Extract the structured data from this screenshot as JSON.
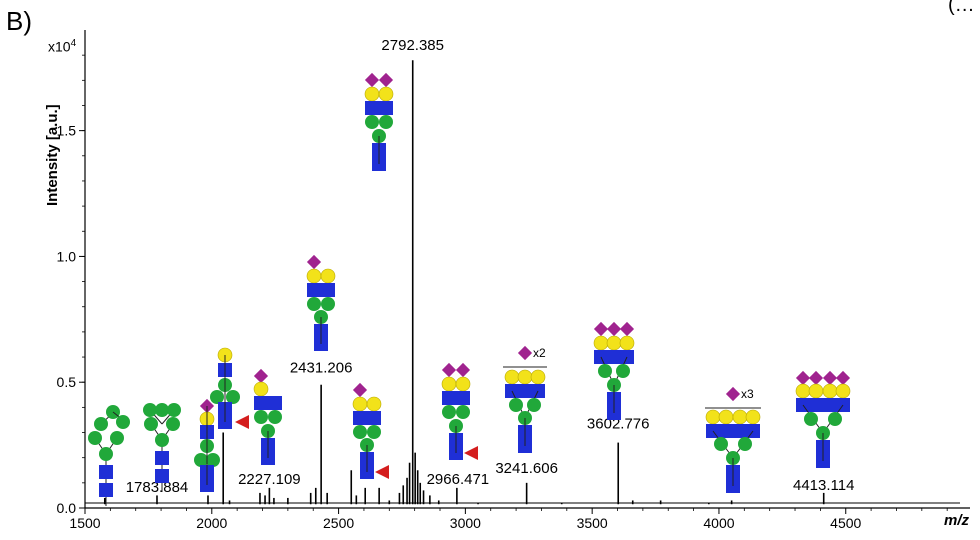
{
  "panel_label": "B)",
  "corner_fragment": "(…",
  "chart_data": {
    "type": "line",
    "title": "",
    "ylabel": "Intensity [a.u.]",
    "xlabel": "m/z",
    "y_scale_prefix": "x10",
    "y_scale_exponent": "4",
    "xlim": [
      1500,
      4990
    ],
    "ylim": [
      0,
      1.9
    ],
    "x_ticks": [
      1500,
      2000,
      2500,
      3000,
      3500,
      4000,
      4500
    ],
    "y_ticks": [
      0.0,
      0.5,
      1.0,
      1.5
    ],
    "y_tick_labels": [
      "0.0",
      "0.5",
      "1.0",
      "1.5"
    ],
    "grid": false,
    "peaks": [
      {
        "mz": 1578,
        "intensity": 0.04
      },
      {
        "mz": 1783.884,
        "intensity": 0.05,
        "label": "1783.884"
      },
      {
        "mz": 1985,
        "intensity": 0.05
      },
      {
        "mz": 2045,
        "intensity": 0.3
      },
      {
        "mz": 2070,
        "intensity": 0.03
      },
      {
        "mz": 2190,
        "intensity": 0.06
      },
      {
        "mz": 2210,
        "intensity": 0.05
      },
      {
        "mz": 2227.109,
        "intensity": 0.08,
        "label": "2227.109"
      },
      {
        "mz": 2245,
        "intensity": 0.04
      },
      {
        "mz": 2300,
        "intensity": 0.04
      },
      {
        "mz": 2390,
        "intensity": 0.06
      },
      {
        "mz": 2410,
        "intensity": 0.08
      },
      {
        "mz": 2431.206,
        "intensity": 0.49,
        "label": "2431.206"
      },
      {
        "mz": 2455,
        "intensity": 0.06
      },
      {
        "mz": 2550,
        "intensity": 0.15
      },
      {
        "mz": 2570,
        "intensity": 0.05
      },
      {
        "mz": 2605,
        "intensity": 0.08
      },
      {
        "mz": 2660,
        "intensity": 0.08
      },
      {
        "mz": 2700,
        "intensity": 0.03
      },
      {
        "mz": 2740,
        "intensity": 0.06
      },
      {
        "mz": 2755,
        "intensity": 0.09
      },
      {
        "mz": 2770,
        "intensity": 0.12
      },
      {
        "mz": 2780,
        "intensity": 0.18
      },
      {
        "mz": 2792.385,
        "intensity": 1.78,
        "label": "2792.385"
      },
      {
        "mz": 2802,
        "intensity": 0.22
      },
      {
        "mz": 2812,
        "intensity": 0.15
      },
      {
        "mz": 2822,
        "intensity": 0.1
      },
      {
        "mz": 2835,
        "intensity": 0.07
      },
      {
        "mz": 2860,
        "intensity": 0.05
      },
      {
        "mz": 2895,
        "intensity": 0.03
      },
      {
        "mz": 2966.471,
        "intensity": 0.08,
        "label": "2966.471"
      },
      {
        "mz": 3050,
        "intensity": 0.02
      },
      {
        "mz": 3241.606,
        "intensity": 0.1,
        "label": "3241.606"
      },
      {
        "mz": 3380,
        "intensity": 0.02
      },
      {
        "mz": 3602.776,
        "intensity": 0.26,
        "label": "3602.776"
      },
      {
        "mz": 3660,
        "intensity": 0.03
      },
      {
        "mz": 3770,
        "intensity": 0.03
      },
      {
        "mz": 3960,
        "intensity": 0.02
      },
      {
        "mz": 4050,
        "intensity": 0.03
      },
      {
        "mz": 4413.114,
        "intensity": 0.06,
        "label": "4413.114"
      }
    ],
    "annotations": [
      "x2",
      "x3"
    ]
  }
}
